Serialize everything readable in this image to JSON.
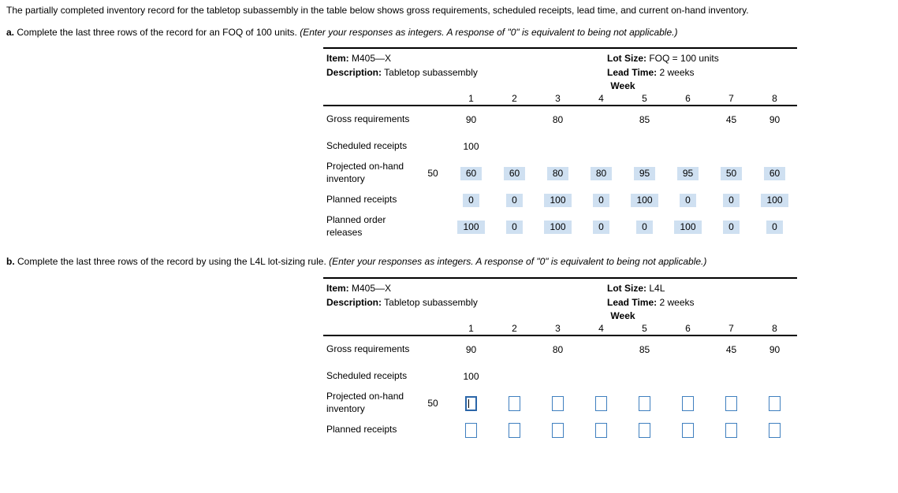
{
  "intro": "The partially completed inventory record for the tabletop subassembly in the table below shows gross requirements, scheduled receipts, lead time, and current on-hand inventory.",
  "parts": [
    {
      "label": "a.",
      "text": "Complete the last three rows of the record for an FOQ of 100 units.",
      "note": "(Enter your responses as integers. A response of \"0\" is equivalent to being not applicable.)"
    },
    {
      "label": "b.",
      "text": "Complete the last three rows of the record by using the L4L lot-sizing rule.",
      "note": "(Enter your responses as integers. A response of \"0\" is equivalent to being not applicable.)"
    }
  ],
  "colors": {
    "filled_input_bg": "#cfe0f1",
    "input_border": "#3f7fbf"
  },
  "tables": [
    {
      "item_label": "Item:",
      "item_value": "M405—X",
      "description_label": "Description:",
      "description_value": "Tabletop subassembly",
      "lot_size_label": "Lot Size:",
      "lot_size_value": "FOQ = 100 units",
      "lead_time_label": "Lead Time:",
      "lead_time_value": "2 weeks",
      "week_label": "Week",
      "week_numbers": [
        "1",
        "2",
        "3",
        "4",
        "5",
        "6",
        "7",
        "8"
      ],
      "rows": [
        {
          "label": "Gross requirements",
          "type": "static",
          "initial": "",
          "cells": [
            "90",
            "",
            "80",
            "",
            "85",
            "",
            "45",
            "90"
          ]
        },
        {
          "label": "Scheduled receipts",
          "type": "static",
          "initial": "",
          "cells": [
            "100",
            "",
            "",
            "",
            "",
            "",
            "",
            ""
          ]
        },
        {
          "label": "Projected on-hand inventory",
          "type": "filled",
          "initial": "50",
          "cells": [
            "60",
            "60",
            "80",
            "80",
            "95",
            "95",
            "50",
            "60"
          ]
        },
        {
          "label": "Planned receipts",
          "type": "filled",
          "initial": "",
          "cells": [
            "0",
            "0",
            "100",
            "0",
            "100",
            "0",
            "0",
            "100"
          ]
        },
        {
          "label": "Planned order releases",
          "type": "filled",
          "initial": "",
          "cells": [
            "100",
            "0",
            "100",
            "0",
            "0",
            "100",
            "0",
            "0"
          ]
        }
      ]
    },
    {
      "item_label": "Item:",
      "item_value": "M405—X",
      "description_label": "Description:",
      "description_value": "Tabletop subassembly",
      "lot_size_label": "Lot Size:",
      "lot_size_value": "L4L",
      "lead_time_label": "Lead Time:",
      "lead_time_value": "2 weeks",
      "week_label": "Week",
      "week_numbers": [
        "1",
        "2",
        "3",
        "4",
        "5",
        "6",
        "7",
        "8"
      ],
      "rows": [
        {
          "label": "Gross requirements",
          "type": "static",
          "initial": "",
          "cells": [
            "90",
            "",
            "80",
            "",
            "85",
            "",
            "45",
            "90"
          ]
        },
        {
          "label": "Scheduled receipts",
          "type": "static",
          "initial": "",
          "cells": [
            "100",
            "",
            "",
            "",
            "",
            "",
            "",
            ""
          ]
        },
        {
          "label": "Projected on-hand inventory",
          "type": "input",
          "initial": "50",
          "cells": [
            "",
            "",
            "",
            "",
            "",
            "",
            "",
            ""
          ],
          "focused_cell": 0
        },
        {
          "label": "Planned receipts",
          "type": "input",
          "initial": "",
          "cells": [
            "",
            "",
            "",
            "",
            "",
            "",
            "",
            ""
          ]
        }
      ]
    }
  ]
}
